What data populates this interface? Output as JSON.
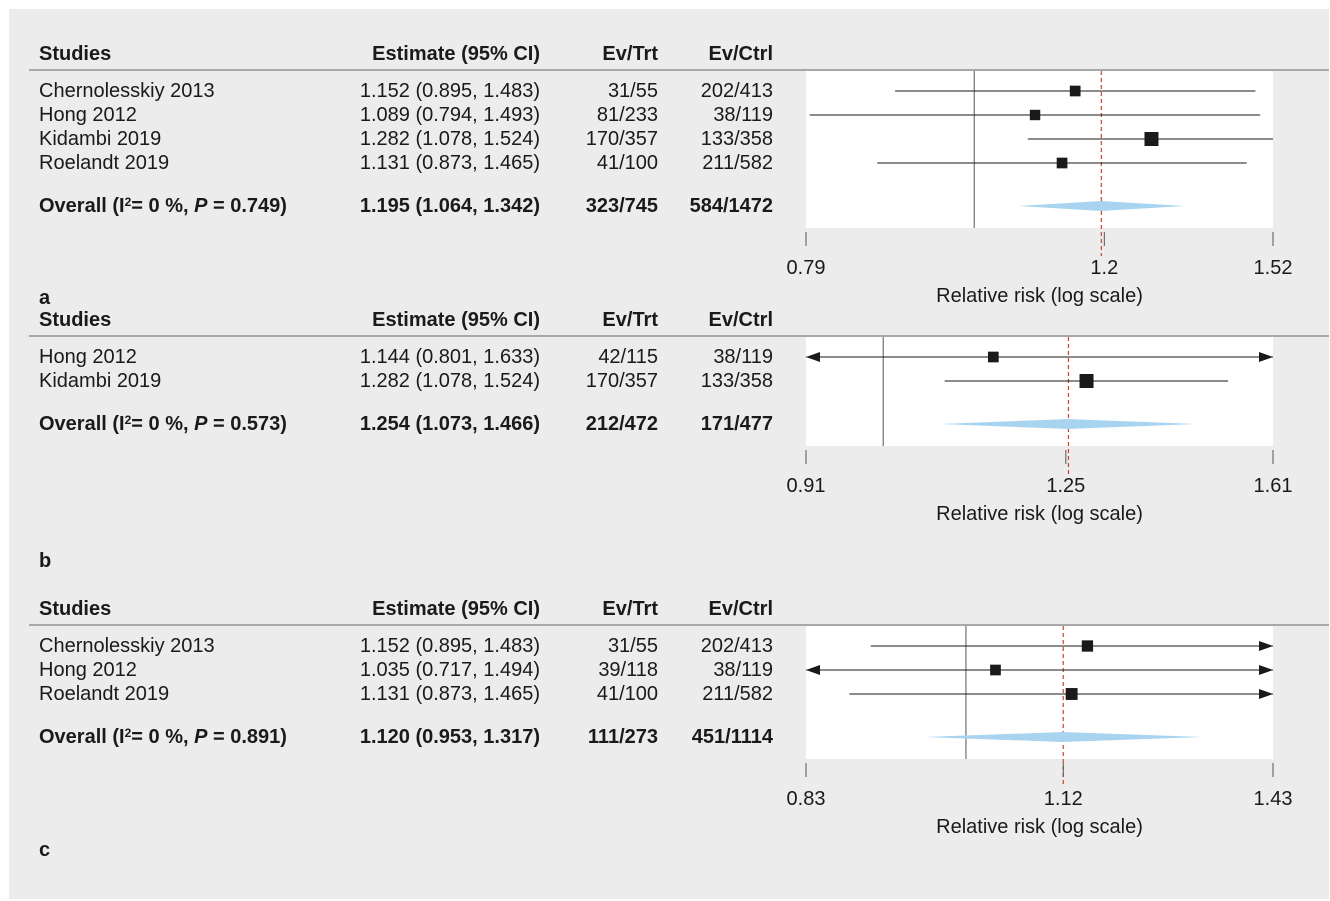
{
  "columns": {
    "study": "Studies",
    "estimate": "Estimate (95% CI)",
    "ev_trt": "Ev/Trt",
    "ev_ctrl": "Ev/Ctrl"
  },
  "colors": {
    "background": "#ececed",
    "plot_bg": "#ffffff",
    "reference_line": "#cc4422",
    "diamond": "#a9d4f0",
    "marker": "#1a1a1a"
  },
  "chart_data": [
    {
      "type": "forest",
      "panel_label": "a",
      "xlabel": "Relative risk (log scale)",
      "xscale": "log",
      "xlim": [
        0.79,
        1.52
      ],
      "xticks": [
        0.79,
        1.2,
        1.52
      ],
      "xtick_labels": [
        "0.79",
        "1.2",
        "1.52"
      ],
      "null_line": 1.0,
      "reference_line": 1.195,
      "studies": [
        {
          "name": "Chernolesskiy 2013",
          "estimate_text": "1.152 (0.895, 1.483)",
          "ev_trt": "31/55",
          "ev_ctrl": "202/413",
          "est": 1.152,
          "lo": 0.895,
          "hi": 1.483,
          "weight": 0.45,
          "arrow_left": false,
          "arrow_right": false
        },
        {
          "name": "Hong 2012",
          "estimate_text": "1.089 (0.794, 1.493)",
          "ev_trt": "81/233",
          "ev_ctrl": "38/119",
          "est": 1.089,
          "lo": 0.794,
          "hi": 1.493,
          "weight": 0.4,
          "arrow_left": false,
          "arrow_right": false
        },
        {
          "name": "Kidambi 2019",
          "estimate_text": "1.282 (1.078, 1.524)",
          "ev_trt": "170/357",
          "ev_ctrl": "133/358",
          "est": 1.282,
          "lo": 1.078,
          "hi": 1.524,
          "weight": 1.0,
          "arrow_left": false,
          "arrow_right": false
        },
        {
          "name": "Roelandt 2019",
          "estimate_text": "1.131 (0.873, 1.465)",
          "ev_trt": "41/100",
          "ev_ctrl": "211/582",
          "est": 1.131,
          "lo": 0.873,
          "hi": 1.465,
          "weight": 0.45,
          "arrow_left": false,
          "arrow_right": false
        }
      ],
      "overall": {
        "label": "Overall (I",
        "sup": "2",
        "i2_text": "= 0 %, ",
        "p_italic": "P",
        "p_text": " = 0.749)",
        "estimate_text": "1.195 (1.064, 1.342)",
        "ev_trt": "323/745",
        "ev_ctrl": "584/1472",
        "est": 1.195,
        "lo": 1.064,
        "hi": 1.342
      }
    },
    {
      "type": "forest",
      "panel_label": "b",
      "xlabel": "Relative risk (log scale)",
      "xscale": "log",
      "xlim": [
        0.91,
        1.61
      ],
      "xticks": [
        0.91,
        1.25,
        1.61
      ],
      "xtick_labels": [
        "0.91",
        "1.25",
        "1.61"
      ],
      "null_line": 1.0,
      "reference_line": 1.254,
      "studies": [
        {
          "name": "Hong 2012",
          "estimate_text": "1.144 (0.801, 1.633)",
          "ev_trt": "42/115",
          "ev_ctrl": "38/119",
          "est": 1.144,
          "lo": 0.801,
          "hi": 1.633,
          "weight": 0.45,
          "arrow_left": true,
          "arrow_right": true
        },
        {
          "name": "Kidambi 2019",
          "estimate_text": "1.282 (1.078, 1.524)",
          "ev_trt": "170/357",
          "ev_ctrl": "133/358",
          "est": 1.282,
          "lo": 1.078,
          "hi": 1.524,
          "weight": 1.0,
          "arrow_left": false,
          "arrow_right": false
        }
      ],
      "overall": {
        "label": "Overall (I",
        "sup": "2",
        "i2_text": "= 0 %, ",
        "p_italic": "P",
        "p_text": " = 0.573)",
        "estimate_text": "1.254 (1.073, 1.466)",
        "ev_trt": "212/472",
        "ev_ctrl": "171/477",
        "est": 1.254,
        "lo": 1.073,
        "hi": 1.466
      }
    },
    {
      "type": "forest",
      "panel_label": "c",
      "xlabel": "Relative risk (log scale)",
      "xscale": "log",
      "xlim": [
        0.83,
        1.43
      ],
      "xticks": [
        0.83,
        1.12,
        1.43
      ],
      "xtick_labels": [
        "0.83",
        "1.12",
        "1.43"
      ],
      "null_line": 1.0,
      "reference_line": 1.12,
      "studies": [
        {
          "name": "Chernolesskiy 2013",
          "estimate_text": "1.152 (0.895, 1.483)",
          "ev_trt": "31/55",
          "ev_ctrl": "202/413",
          "est": 1.152,
          "lo": 0.895,
          "hi": 1.483,
          "weight": 0.55,
          "arrow_left": false,
          "arrow_right": true
        },
        {
          "name": "Hong 2012",
          "estimate_text": "1.035 (0.717, 1.494)",
          "ev_trt": "39/118",
          "ev_ctrl": "38/119",
          "est": 1.035,
          "lo": 0.717,
          "hi": 1.494,
          "weight": 0.45,
          "arrow_left": true,
          "arrow_right": true
        },
        {
          "name": "Roelandt 2019",
          "estimate_text": "1.131 (0.873, 1.465)",
          "ev_trt": "41/100",
          "ev_ctrl": "211/582",
          "est": 1.131,
          "lo": 0.873,
          "hi": 1.465,
          "weight": 0.65,
          "arrow_left": false,
          "arrow_right": true
        }
      ],
      "overall": {
        "label": "Overall (I",
        "sup": "2",
        "i2_text": "= 0 %, ",
        "p_italic": "P",
        "p_text": " = 0.891)",
        "estimate_text": "1.120 (0.953, 1.317)",
        "ev_trt": "111/273",
        "ev_ctrl": "451/1114",
        "est": 1.12,
        "lo": 0.953,
        "hi": 1.317
      }
    }
  ]
}
